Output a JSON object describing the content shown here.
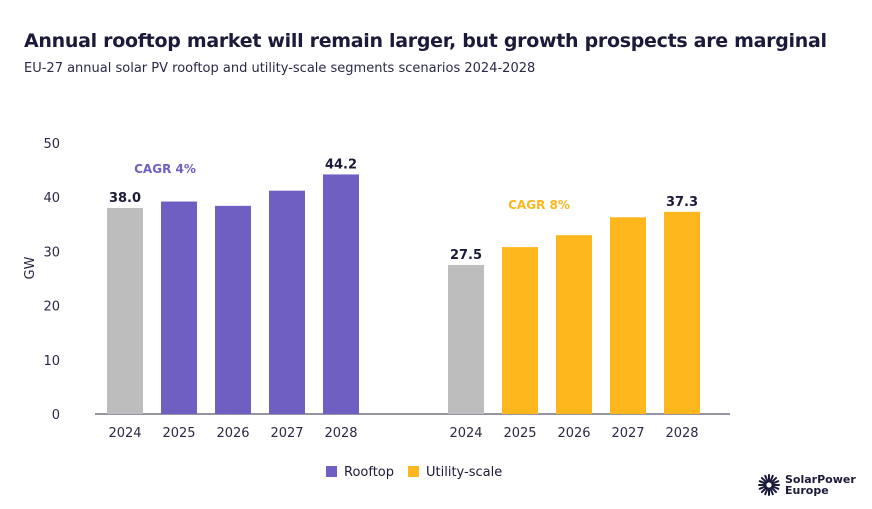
{
  "title": "Annual rooftop market will remain larger, but growth prospects are marginal",
  "subtitle": "EU-27 annual solar PV rooftop and utility-scale segments scenarios 2024-2028",
  "logo_text": [
    "SolarPower",
    "Europe"
  ],
  "chart_data": {
    "type": "bar",
    "ylabel": "GW",
    "ylim": [
      0,
      50
    ],
    "yticks": [
      0,
      10,
      20,
      30,
      40,
      50
    ],
    "grid": false,
    "legend_position": "bottom",
    "colors": {
      "historic": "#bdbdbd",
      "Rooftop": "#6f5fc2",
      "Utility-scale": "#fdb71d"
    },
    "groups": [
      {
        "name": "Rooftop",
        "categories": [
          "2024",
          "2025",
          "2026",
          "2027",
          "2028"
        ],
        "values": [
          38.0,
          39.2,
          38.4,
          41.2,
          44.2
        ],
        "data_labels": [
          "38.0",
          null,
          null,
          null,
          "44.2"
        ],
        "annotation": "CAGR 4%",
        "annotation_color": "#6f5fc2"
      },
      {
        "name": "Utility-scale",
        "categories": [
          "2024",
          "2025",
          "2026",
          "2027",
          "2028"
        ],
        "values": [
          27.5,
          30.8,
          33.0,
          36.3,
          37.3
        ],
        "data_labels": [
          "27.5",
          null,
          null,
          null,
          "37.3"
        ],
        "annotation": "CAGR 8%",
        "annotation_color": "#fdb71d"
      }
    ],
    "legend": [
      "Rooftop",
      "Utility-scale"
    ]
  }
}
